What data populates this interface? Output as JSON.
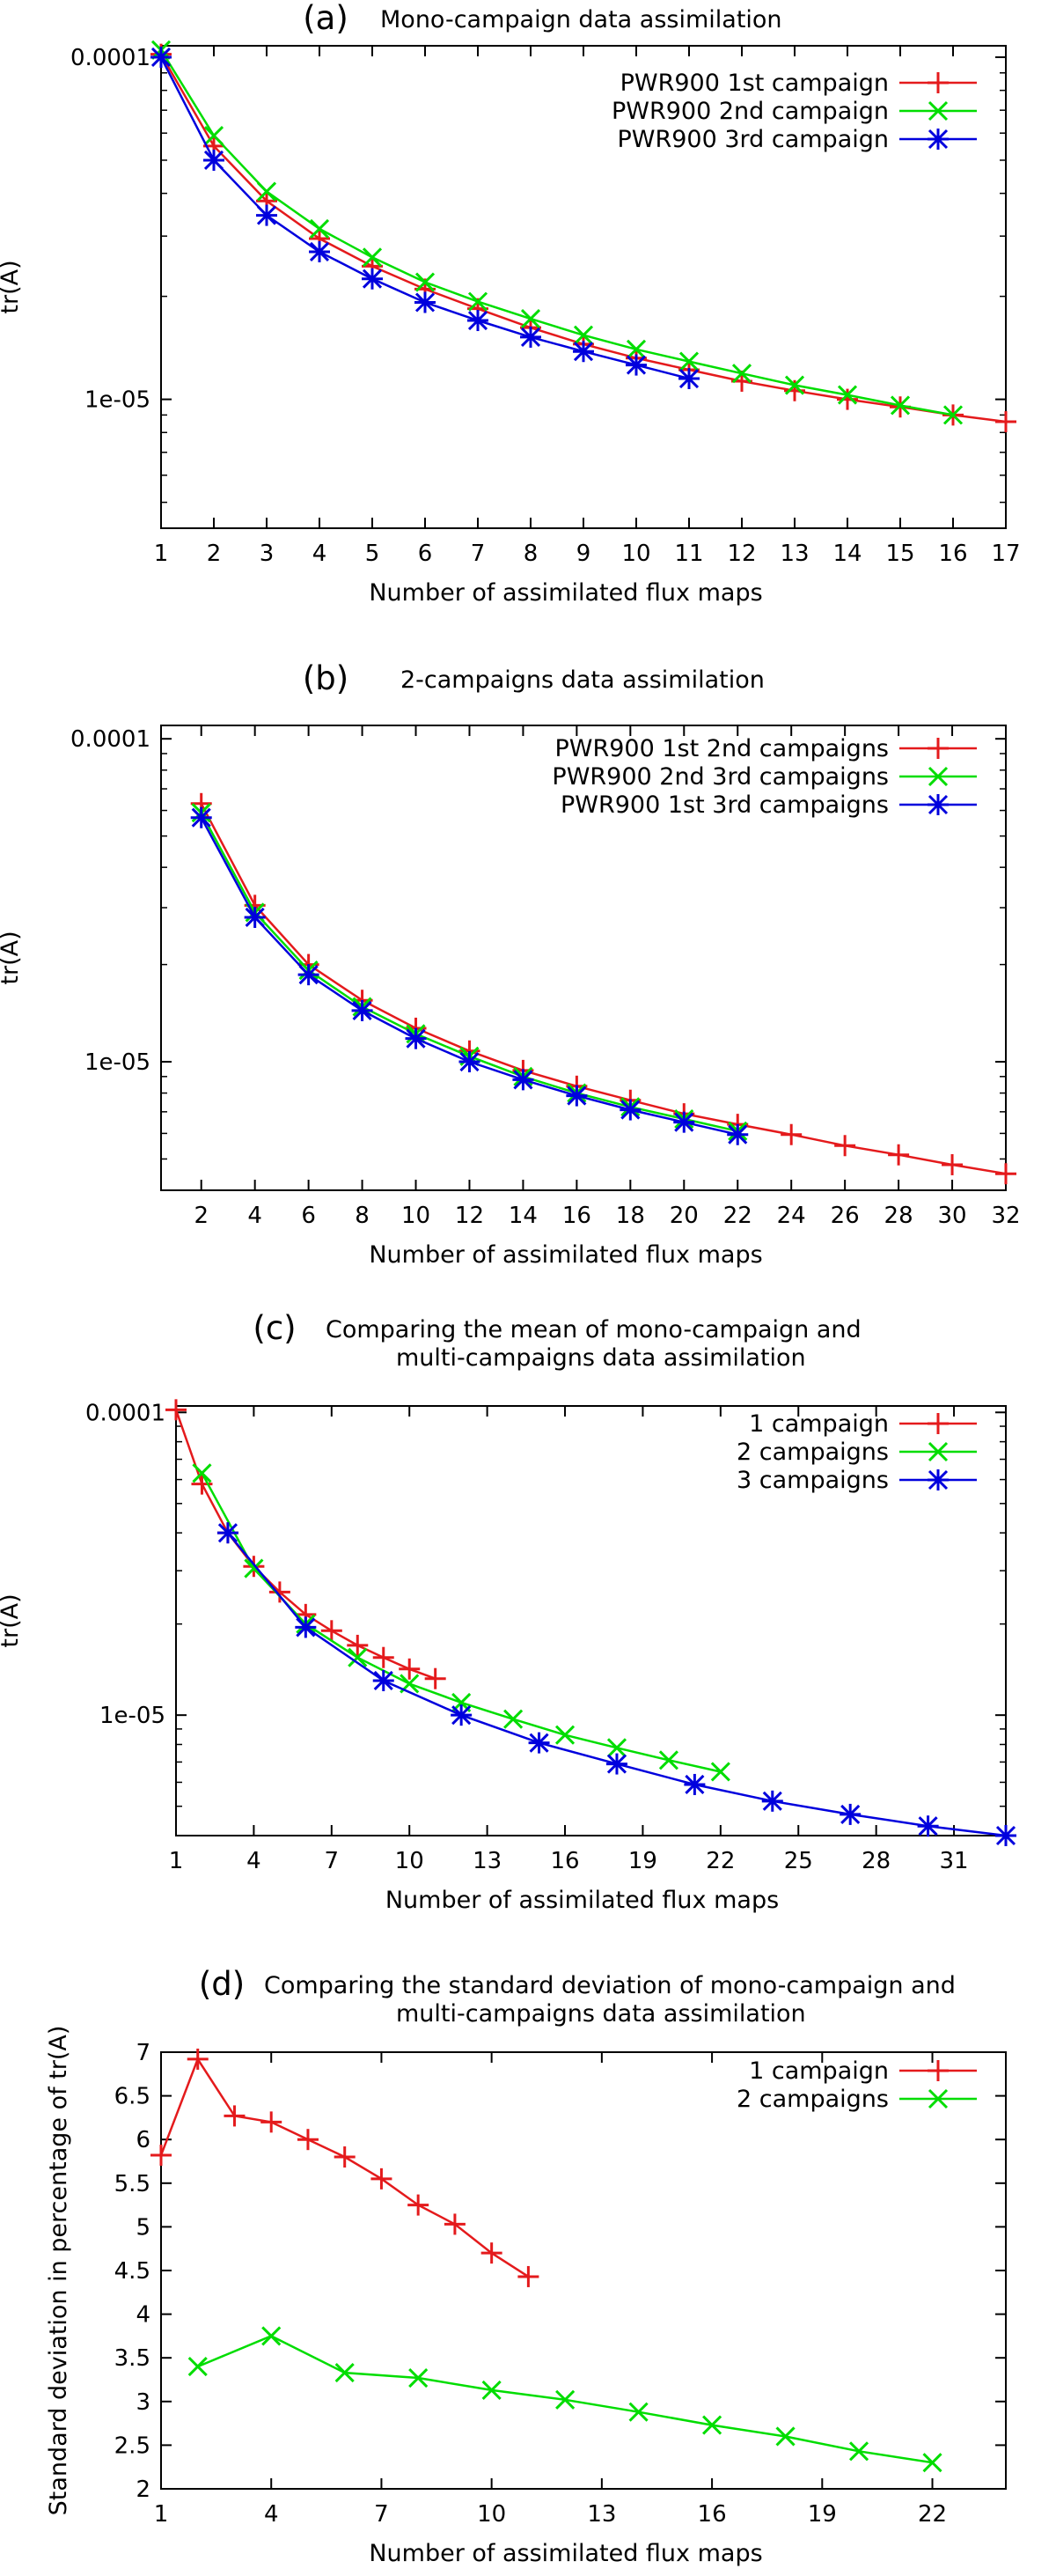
{
  "chart_data": [
    {
      "type": "line",
      "panel_label": "(a)",
      "title": "Mono-campaign data assimilation",
      "xlabel": "Number of assimilated flux maps",
      "ylabel": "tr(A)",
      "yscale": "log",
      "xlim": [
        1,
        17
      ],
      "ylim": [
        4.2e-06,
        0.000108
      ],
      "xticks": [
        1,
        2,
        3,
        4,
        5,
        6,
        7,
        8,
        9,
        10,
        11,
        12,
        13,
        14,
        15,
        16,
        17
      ],
      "yticks": [
        {
          "v": 0.0001,
          "label": "0.0001"
        },
        {
          "v": 1e-05,
          "label": "1e-05"
        }
      ],
      "grid": false,
      "legend_position": "top-right",
      "series": [
        {
          "name": "PWR900 1st campaign",
          "color": "#e41a1c",
          "marker": "plus",
          "x": [
            1,
            2,
            3,
            4,
            5,
            6,
            7,
            8,
            9,
            10,
            11,
            12,
            13,
            14,
            15,
            16,
            17
          ],
          "y": [
            0.000102,
            5.5e-05,
            3.8e-05,
            2.95e-05,
            2.45e-05,
            2.1e-05,
            1.84e-05,
            1.62e-05,
            1.45e-05,
            1.32e-05,
            1.22e-05,
            1.13e-05,
            1.06e-05,
            1e-05,
            9.5e-06,
            9e-06,
            8.6e-06
          ]
        },
        {
          "name": "PWR900 2nd campaign",
          "color": "#00dd00",
          "marker": "x",
          "x": [
            1,
            2,
            3,
            4,
            5,
            6,
            7,
            8,
            9,
            10,
            11,
            12,
            13,
            14,
            15,
            16
          ],
          "y": [
            0.000105,
            5.9e-05,
            4.05e-05,
            3.15e-05,
            2.6e-05,
            2.2e-05,
            1.93e-05,
            1.72e-05,
            1.54e-05,
            1.4e-05,
            1.29e-05,
            1.19e-05,
            1.1e-05,
            1.03e-05,
            9.6e-06,
            9e-06
          ]
        },
        {
          "name": "PWR900 3rd campaign",
          "color": "#0000dd",
          "marker": "star",
          "x": [
            1,
            2,
            3,
            4,
            5,
            6,
            7,
            8,
            9,
            10,
            11
          ],
          "y": [
            0.0001,
            5e-05,
            3.45e-05,
            2.7e-05,
            2.25e-05,
            1.92e-05,
            1.7e-05,
            1.52e-05,
            1.38e-05,
            1.26e-05,
            1.15e-05
          ]
        }
      ]
    },
    {
      "type": "line",
      "panel_label": "(b)",
      "title": "2-campaigns data assimilation",
      "xlabel": "Number of assimilated flux maps",
      "ylabel": "tr(A)",
      "yscale": "log",
      "xlim": [
        0.5,
        32
      ],
      "ylim": [
        4e-06,
        0.00011
      ],
      "xticks": [
        2,
        4,
        6,
        8,
        10,
        12,
        14,
        16,
        18,
        20,
        22,
        24,
        26,
        28,
        30,
        32
      ],
      "yticks": [
        {
          "v": 0.0001,
          "label": "0.0001"
        },
        {
          "v": 1e-05,
          "label": "1e-05"
        }
      ],
      "grid": false,
      "legend_position": "top-right",
      "series": [
        {
          "name": "PWR900 1st  2nd campaigns",
          "color": "#e41a1c",
          "marker": "plus",
          "x": [
            2,
            4,
            6,
            8,
            10,
            12,
            14,
            16,
            18,
            20,
            22,
            24,
            26,
            28,
            30,
            32
          ],
          "y": [
            6.3e-05,
            3.05e-05,
            2e-05,
            1.55e-05,
            1.27e-05,
            1.08e-05,
            9.4e-06,
            8.4e-06,
            7.6e-06,
            6.9e-06,
            6.4e-06,
            5.95e-06,
            5.5e-06,
            5.15e-06,
            4.8e-06,
            4.5e-06
          ]
        },
        {
          "name": "PWR900 2nd  3rd campaigns",
          "color": "#00dd00",
          "marker": "x",
          "x": [
            2,
            4,
            6,
            8,
            10,
            12,
            14,
            16,
            18,
            20,
            22
          ],
          "y": [
            5.9e-05,
            2.9e-05,
            1.92e-05,
            1.48e-05,
            1.22e-05,
            1.04e-05,
            9e-06,
            8e-06,
            7.25e-06,
            6.65e-06,
            6.1e-06
          ]
        },
        {
          "name": "PWR900 1st  3rd campaigns",
          "color": "#0000dd",
          "marker": "star",
          "x": [
            2,
            4,
            6,
            8,
            10,
            12,
            14,
            16,
            18,
            20,
            22
          ],
          "y": [
            5.7e-05,
            2.8e-05,
            1.86e-05,
            1.44e-05,
            1.18e-05,
            1e-05,
            8.8e-06,
            7.85e-06,
            7.1e-06,
            6.5e-06,
            5.95e-06
          ]
        }
      ]
    },
    {
      "type": "line",
      "panel_label": "(c)",
      "title": "Comparing the mean of mono-campaign and",
      "title_line2": "multi-campaigns data assimilation",
      "xlabel": "Number of assimilated flux maps",
      "ylabel": "tr(A)",
      "yscale": "log",
      "xlim": [
        1,
        33
      ],
      "ylim": [
        4e-06,
        0.000105
      ],
      "xticks": [
        1,
        4,
        7,
        10,
        13,
        16,
        19,
        22,
        25,
        28,
        31
      ],
      "yticks": [
        {
          "v": 0.0001,
          "label": "0.0001"
        },
        {
          "v": 1e-05,
          "label": "1e-05"
        }
      ],
      "grid": false,
      "legend_position": "top-right",
      "series": [
        {
          "name": "1 campaign",
          "color": "#e41a1c",
          "marker": "plus",
          "x": [
            1,
            2,
            3,
            4,
            5,
            6,
            7,
            8,
            9,
            10,
            11
          ],
          "y": [
            0.000102,
            5.8e-05,
            4e-05,
            3.1e-05,
            2.55e-05,
            2.15e-05,
            1.9e-05,
            1.7e-05,
            1.55e-05,
            1.42e-05,
            1.32e-05
          ]
        },
        {
          "name": "2 campaigns",
          "color": "#00dd00",
          "marker": "x",
          "x": [
            2,
            4,
            6,
            8,
            10,
            12,
            14,
            16,
            18,
            20,
            22
          ],
          "y": [
            6.3e-05,
            3.05e-05,
            2e-05,
            1.55e-05,
            1.27e-05,
            1.1e-05,
            9.7e-06,
            8.6e-06,
            7.8e-06,
            7.1e-06,
            6.5e-06
          ]
        },
        {
          "name": "3 campaigns",
          "color": "#0000dd",
          "marker": "star",
          "x": [
            3,
            6,
            9,
            12,
            15,
            18,
            21,
            24,
            27,
            30,
            33
          ],
          "y": [
            4e-05,
            1.95e-05,
            1.3e-05,
            1e-05,
            8.1e-06,
            6.9e-06,
            5.9e-06,
            5.2e-06,
            4.7e-06,
            4.3e-06,
            4e-06
          ]
        }
      ]
    },
    {
      "type": "line",
      "panel_label": "(d)",
      "title": "Comparing the standard deviation of mono-campaign and",
      "title_line2": "multi-campaigns data assimilation",
      "xlabel": "Number of assimilated flux maps",
      "ylabel": "Standard deviation in percentage of tr(A)",
      "yscale": "linear",
      "xlim": [
        1,
        24
      ],
      "ylim": [
        2,
        7
      ],
      "xticks": [
        1,
        4,
        7,
        10,
        13,
        16,
        19,
        22
      ],
      "yticks": [
        {
          "v": 2,
          "label": "2"
        },
        {
          "v": 2.5,
          "label": "2.5"
        },
        {
          "v": 3,
          "label": "3"
        },
        {
          "v": 3.5,
          "label": "3.5"
        },
        {
          "v": 4,
          "label": "4"
        },
        {
          "v": 4.5,
          "label": "4.5"
        },
        {
          "v": 5,
          "label": "5"
        },
        {
          "v": 5.5,
          "label": "5.5"
        },
        {
          "v": 6,
          "label": "6"
        },
        {
          "v": 6.5,
          "label": "6.5"
        },
        {
          "v": 7,
          "label": "7"
        }
      ],
      "grid": false,
      "legend_position": "top-right",
      "series": [
        {
          "name": "1 campaign",
          "color": "#e41a1c",
          "marker": "plus",
          "x": [
            1,
            2,
            3,
            4,
            5,
            6,
            7,
            8,
            9,
            10,
            11
          ],
          "y": [
            5.82,
            6.92,
            6.27,
            6.2,
            6.0,
            5.8,
            5.55,
            5.25,
            5.03,
            4.7,
            4.43
          ]
        },
        {
          "name": "2 campaigns",
          "color": "#00dd00",
          "marker": "x",
          "x": [
            2,
            4,
            6,
            8,
            10,
            12,
            14,
            16,
            18,
            20,
            22
          ],
          "y": [
            3.4,
            3.75,
            3.33,
            3.27,
            3.13,
            3.02,
            2.88,
            2.73,
            2.6,
            2.43,
            2.3
          ]
        }
      ]
    }
  ]
}
